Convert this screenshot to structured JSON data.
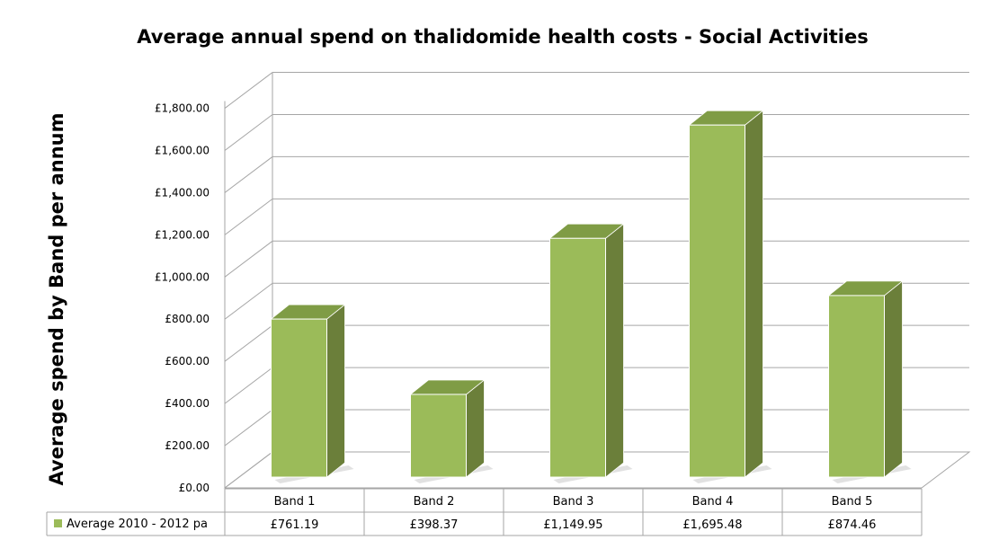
{
  "chart_data": {
    "type": "bar",
    "title": "Average annual spend on thalidomide health costs - Social Activities",
    "xlabel": "",
    "ylabel": "Average spend by Band per annum",
    "categories": [
      "Band 1",
      "Band 2",
      "Band 3",
      "Band 4",
      "Band 5"
    ],
    "series": [
      {
        "name": "Average 2010 - 2012 pa",
        "values": [
          761.19,
          398.37,
          1149.95,
          1695.48,
          874.46
        ],
        "value_labels": [
          "£761.19",
          "£398.37",
          "£1,149.95",
          "£1,695.48",
          "£874.46"
        ]
      }
    ],
    "ylim": [
      0,
      1800
    ],
    "yticks": [
      0,
      200,
      400,
      600,
      800,
      1000,
      1200,
      1400,
      1600,
      1800
    ],
    "ytick_labels": [
      "£0.00",
      "£200.00",
      "£400.00",
      "£600.00",
      "£800.00",
      "£1,000.00",
      "£1,200.00",
      "£1,400.00",
      "£1,600.00",
      "£1,800.00"
    ],
    "grid": true,
    "style": "3d-column",
    "legend": "data-table-bottom",
    "colors": {
      "bar_front": "#9bbb59",
      "bar_side": "#6b7f3a",
      "bar_top": "#7f9c45",
      "grid": "#a6a6a6",
      "table_border": "#a6a6a6",
      "legend_key": "#9bbb59"
    }
  }
}
